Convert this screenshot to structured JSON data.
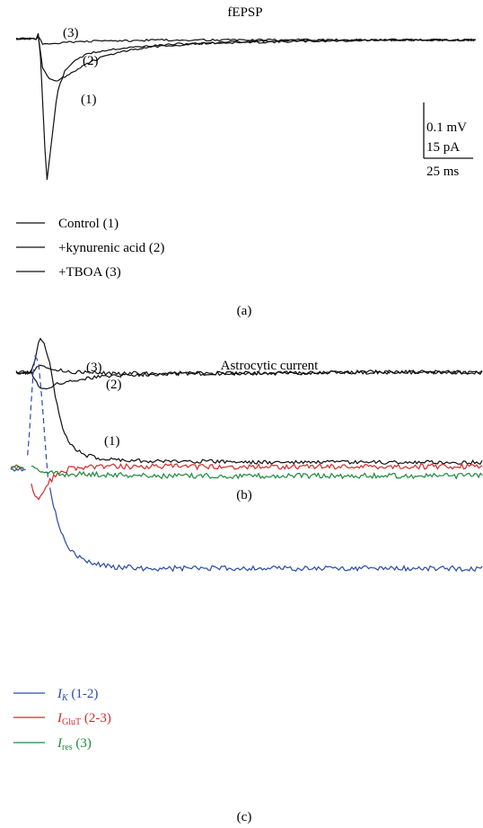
{
  "chart_data": [
    {
      "panel_label": "(a)",
      "type": "line",
      "title": "fEPSP",
      "trace_labels": [
        "(1)",
        "(2)",
        "(3)"
      ],
      "scale_bar": {
        "vertical_1": "0.1 mV",
        "vertical_2": "15 pA",
        "horizontal": "25 ms"
      },
      "legend": [
        {
          "line_color": "#111111",
          "label": "Control (1)"
        },
        {
          "line_color": "#111111",
          "label": "+kynurenic acid (2)"
        },
        {
          "line_color": "#111111",
          "label": "+TBOA (3)"
        }
      ],
      "series": [
        {
          "trace": 1,
          "color": "#111111",
          "x": [
            0,
            12,
            14,
            15,
            17,
            19,
            21,
            24,
            28,
            33,
            40,
            50,
            65,
            85,
            110,
            150,
            200,
            260,
            312
          ],
          "y": [
            0,
            0,
            -1,
            4,
            -20,
            -75,
            -107,
            -78,
            -40,
            -25,
            -16,
            -11,
            -8,
            -6,
            -4,
            -3,
            -2,
            -1,
            -1
          ]
        },
        {
          "trace": 2,
          "color": "#111111",
          "x": [
            0,
            12,
            14,
            15,
            18,
            22,
            27,
            33,
            40,
            50,
            60,
            75,
            95,
            120,
            160,
            210,
            260,
            312
          ],
          "y": [
            0,
            0,
            -1,
            2,
            -22,
            -30,
            -32,
            -29,
            -24,
            -18,
            -13,
            -9,
            -6,
            -4,
            -2,
            -1,
            -1,
            -1
          ]
        },
        {
          "trace": 3,
          "color": "#111111",
          "x": [
            0,
            12,
            14,
            15,
            18,
            22,
            30,
            50,
            100,
            200,
            312
          ],
          "y": [
            0,
            0,
            -1,
            2,
            -4,
            -4,
            -3,
            -2,
            -1,
            -1,
            -1
          ]
        }
      ]
    },
    {
      "panel_label": "(b)",
      "type": "line",
      "title": "Astrocytic current",
      "trace_labels": [
        "(1)",
        "(2)",
        "(3)"
      ],
      "series": [
        {
          "trace": 1,
          "color": "#111111",
          "x": [
            0,
            10,
            13,
            15,
            18,
            22,
            25,
            28,
            32,
            38,
            45,
            55,
            70,
            90,
            120,
            160,
            210,
            260,
            300
          ],
          "y": [
            0,
            0,
            15,
            30,
            24,
            6,
            -18,
            -38,
            -55,
            -65,
            -70,
            -73,
            -74,
            -75,
            -75,
            -76,
            -76,
            -76,
            -76
          ]
        },
        {
          "trace": 2,
          "color": "#111111",
          "x": [
            0,
            10,
            13,
            15,
            18,
            22,
            25,
            30,
            40,
            60,
            100,
            160,
            220,
            300
          ],
          "y": [
            0,
            0,
            -8,
            -13,
            -14,
            -13,
            -11,
            -9,
            -6,
            -3,
            -1,
            -1,
            0,
            0
          ]
        },
        {
          "trace": 3,
          "color": "#111111",
          "x": [
            0,
            10,
            13,
            15,
            18,
            22,
            25,
            30,
            40,
            60,
            100,
            160,
            220,
            300
          ],
          "y": [
            0,
            0,
            4,
            6,
            5,
            3,
            2,
            1,
            0,
            -1,
            -1,
            -1,
            0,
            0
          ]
        }
      ]
    },
    {
      "panel_label": "(c)",
      "type": "line",
      "legend": [
        {
          "color": "#2b4aa8",
          "label_main": "I",
          "label_sub": "K",
          "label_tail": " (1-2)"
        },
        {
          "color": "#d42a2a",
          "label_main": "I",
          "label_sub": "GluT",
          "label_tail": " (2-3)"
        },
        {
          "color": "#1e8a3c",
          "label_main": "I",
          "label_sub": "res",
          "label_tail": " (3)"
        }
      ],
      "series": [
        {
          "name": "I_K (1-2)",
          "color": "#2b4aa8",
          "dash_segment_x": [
            10,
            24
          ],
          "x": [
            0,
            10,
            12,
            14,
            15,
            16,
            18,
            20,
            22,
            24,
            28,
            33,
            40,
            50,
            65,
            85,
            110,
            150,
            200,
            260,
            304
          ],
          "y": [
            0,
            0,
            20,
            45,
            58,
            60,
            55,
            38,
            15,
            -5,
            -22,
            -35,
            -45,
            -50,
            -52,
            -53,
            -53,
            -53,
            -53,
            -53,
            -53
          ]
        },
        {
          "name": "I_GluT (2-3)",
          "color": "#d42a2a",
          "x": [
            0,
            9,
            10,
            12,
            14,
            16,
            18,
            20,
            22,
            25,
            28,
            32,
            38,
            50,
            100,
            200,
            304
          ],
          "y": [
            0,
            0,
            null,
            -5,
            -12,
            -16,
            -17,
            -15,
            -12,
            -8,
            -5,
            -3,
            -1,
            0,
            0,
            0,
            0
          ]
        },
        {
          "name": "I_res (3)",
          "color": "#1e8a3c",
          "x": [
            0,
            9,
            10,
            12,
            15,
            20,
            30,
            50,
            100,
            200,
            304
          ],
          "y": [
            0,
            0,
            null,
            2,
            1,
            -2,
            -3,
            -3,
            -4,
            -4,
            -4
          ]
        }
      ]
    }
  ]
}
